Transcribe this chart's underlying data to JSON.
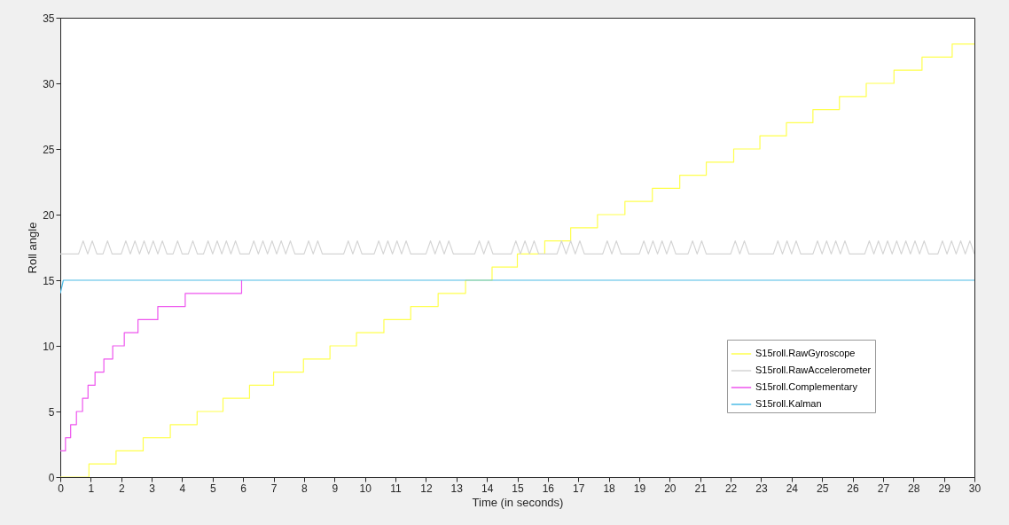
{
  "chart_data": {
    "type": "line",
    "xlabel": "Time (in seconds)",
    "ylabel": "Roll angle",
    "xlim": [
      0,
      30
    ],
    "xticks": [
      0,
      1,
      2,
      3,
      4,
      5,
      6,
      7,
      8,
      9,
      10,
      11,
      12,
      13,
      14,
      15,
      16,
      17,
      18,
      19,
      20,
      21,
      22,
      23,
      24,
      25,
      26,
      27,
      28,
      29,
      30
    ],
    "ylim": [
      0,
      35
    ],
    "yticks": [
      0,
      5,
      10,
      15,
      20,
      25,
      30,
      35
    ],
    "grid": false,
    "legend": "bottom right",
    "line_style": "solid",
    "series": [
      {
        "name": "S15roll.RawGyroscope",
        "type": "step",
        "color": "#ffff4d",
        "x": [
          0,
          0.94,
          1.83,
          2.72,
          3.61,
          4.49,
          5.34,
          6.21,
          7.0,
          7.98,
          8.85,
          9.72,
          10.62,
          11.5,
          12.4,
          13.3,
          14.17,
          15.0,
          15.9,
          16.75,
          17.63,
          18.53,
          19.43,
          20.33,
          21.2,
          22.1,
          22.96,
          23.83,
          24.7,
          25.57,
          26.45,
          27.36,
          28.28,
          29.27,
          30
        ],
        "values": [
          0,
          1,
          2,
          3,
          4,
          5,
          6,
          7,
          8,
          9,
          10,
          11,
          12,
          13,
          14,
          15,
          16,
          17,
          18,
          19,
          20,
          21,
          22,
          23,
          24,
          25,
          26,
          27,
          28,
          29,
          30,
          31,
          32,
          33,
          33
        ]
      },
      {
        "name": "S15roll.RawAccelerometer",
        "color": "#d4d4d4",
        "x": [
          0,
          0.6,
          0.75,
          0.9,
          1.05,
          1.2,
          1.4,
          1.55,
          1.7,
          2.0,
          2.15,
          2.3,
          2.45,
          2.6,
          2.75,
          2.9,
          3.05,
          3.2,
          3.35,
          3.5,
          3.7,
          3.85,
          4.0,
          4.2,
          4.35,
          4.5,
          4.7,
          4.85,
          5.0,
          5.15,
          5.3,
          5.45,
          5.6,
          5.75,
          5.9,
          6.2,
          6.35,
          6.5,
          6.65,
          6.8,
          6.95,
          7.1,
          7.25,
          7.4,
          7.55,
          7.7,
          8.0,
          8.15,
          8.3,
          8.45,
          8.6,
          9.3,
          9.45,
          9.6,
          9.75,
          9.9,
          10.3,
          10.45,
          10.6,
          10.75,
          10.9,
          11.05,
          11.2,
          11.35,
          11.5,
          12.0,
          12.15,
          12.3,
          12.45,
          12.6,
          12.75,
          12.9,
          13.6,
          13.75,
          13.9,
          14.05,
          14.2,
          14.8,
          14.95,
          15.1,
          15.25,
          15.4,
          15.55,
          15.7,
          16.3,
          16.45,
          16.6,
          16.75,
          16.9,
          17.05,
          17.2,
          17.8,
          17.95,
          18.1,
          18.25,
          18.4,
          19.0,
          19.15,
          19.3,
          19.45,
          19.6,
          19.75,
          19.9,
          20.05,
          20.2,
          20.6,
          20.75,
          20.9,
          21.05,
          21.2,
          22.0,
          22.15,
          22.3,
          22.45,
          22.6,
          23.4,
          23.55,
          23.7,
          23.85,
          24.0,
          24.15,
          24.3,
          24.7,
          24.85,
          25.0,
          25.15,
          25.3,
          25.45,
          25.6,
          25.75,
          25.9,
          26.4,
          26.55,
          26.7,
          26.85,
          27.0,
          27.15,
          27.3,
          27.45,
          27.6,
          27.75,
          27.9,
          28.05,
          28.2,
          28.35,
          28.5,
          28.8,
          28.95,
          29.1,
          29.25,
          29.4,
          29.55,
          29.7,
          29.85,
          30.0
        ],
        "values": [
          17,
          17,
          18,
          17,
          18,
          17,
          17,
          18,
          17,
          17,
          18,
          17,
          18,
          17,
          18,
          17,
          18,
          17,
          18,
          17,
          17,
          18,
          17,
          17,
          18,
          17,
          17,
          18,
          17,
          18,
          17,
          18,
          17,
          18,
          17,
          17,
          18,
          17,
          18,
          17,
          18,
          17,
          18,
          17,
          18,
          17,
          17,
          18,
          17,
          18,
          17,
          17,
          18,
          17,
          18,
          17,
          17,
          18,
          17,
          18,
          17,
          18,
          17,
          18,
          17,
          17,
          18,
          17,
          18,
          17,
          18,
          17,
          17,
          18,
          17,
          18,
          17,
          17,
          18,
          17,
          18,
          17,
          18,
          17,
          17,
          18,
          17,
          18,
          17,
          18,
          17,
          17,
          18,
          17,
          18,
          17,
          17,
          18,
          17,
          18,
          17,
          18,
          17,
          18,
          17,
          17,
          18,
          17,
          18,
          17,
          17,
          18,
          17,
          18,
          17,
          17,
          18,
          17,
          18,
          17,
          18,
          17,
          17,
          18,
          17,
          18,
          17,
          18,
          17,
          18,
          17,
          17,
          18,
          17,
          18,
          17,
          18,
          17,
          18,
          17,
          18,
          17,
          18,
          17,
          18,
          17,
          17,
          18,
          17,
          18,
          17,
          18,
          17,
          18,
          17
        ]
      },
      {
        "name": "S15roll.Complementary",
        "type": "step",
        "color": "#ee55ee",
        "x": [
          0,
          0.17,
          0.34,
          0.53,
          0.73,
          0.91,
          1.14,
          1.43,
          1.72,
          2.1,
          2.55,
          3.2,
          4.1,
          5.95
        ],
        "values": [
          2,
          3,
          4,
          5,
          6,
          7,
          8,
          9,
          10,
          11,
          12,
          13,
          14,
          15
        ]
      },
      {
        "name": "S15roll.Kalman",
        "color": "#4dbbe6",
        "x": [
          0,
          0.1,
          30
        ],
        "values": [
          14,
          15,
          15
        ]
      }
    ]
  }
}
